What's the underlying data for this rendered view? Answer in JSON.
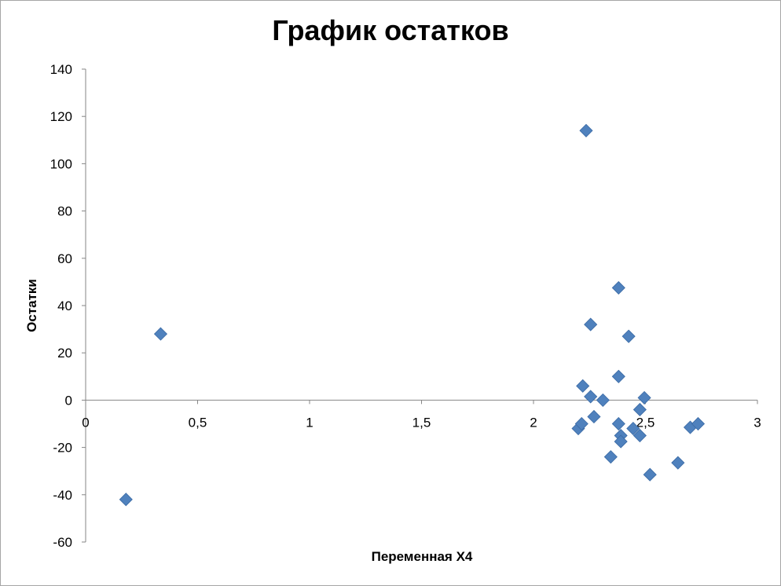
{
  "chart_data": {
    "type": "scatter",
    "title": "График остатков",
    "xlabel": "Переменная X4",
    "ylabel": "Остатки",
    "xlim": [
      0,
      3
    ],
    "ylim": [
      -60,
      140
    ],
    "x_ticks": [
      "0",
      "0,5",
      "1",
      "1,5",
      "2",
      "2,5",
      "3"
    ],
    "x_tick_values": [
      0,
      0.5,
      1,
      1.5,
      2,
      2.5,
      3
    ],
    "y_ticks": [
      "140",
      "120",
      "100",
      "80",
      "60",
      "40",
      "20",
      "0",
      "-20",
      "-40",
      "-60"
    ],
    "y_tick_values": [
      140,
      120,
      100,
      80,
      60,
      40,
      20,
      0,
      -20,
      -40,
      -60
    ],
    "grid": false,
    "legend": "none",
    "marker": "diamond",
    "marker_color": "#4f81bd",
    "points": [
      {
        "x": 0.18,
        "y": -42
      },
      {
        "x": 0.335,
        "y": 28
      },
      {
        "x": 2.2,
        "y": -12
      },
      {
        "x": 2.215,
        "y": -10
      },
      {
        "x": 2.22,
        "y": 6
      },
      {
        "x": 2.235,
        "y": 114
      },
      {
        "x": 2.255,
        "y": 32
      },
      {
        "x": 2.255,
        "y": 1.5
      },
      {
        "x": 2.27,
        "y": -7
      },
      {
        "x": 2.31,
        "y": 0
      },
      {
        "x": 2.345,
        "y": -24
      },
      {
        "x": 2.38,
        "y": 47.5
      },
      {
        "x": 2.38,
        "y": 10
      },
      {
        "x": 2.38,
        "y": -10
      },
      {
        "x": 2.39,
        "y": -15
      },
      {
        "x": 2.39,
        "y": -17.5
      },
      {
        "x": 2.425,
        "y": 27
      },
      {
        "x": 2.445,
        "y": -12
      },
      {
        "x": 2.475,
        "y": -4
      },
      {
        "x": 2.475,
        "y": -15
      },
      {
        "x": 2.495,
        "y": 1
      },
      {
        "x": 2.52,
        "y": -31.5
      },
      {
        "x": 2.645,
        "y": -26.5
      },
      {
        "x": 2.7,
        "y": -11.5
      },
      {
        "x": 2.735,
        "y": -10
      }
    ]
  }
}
